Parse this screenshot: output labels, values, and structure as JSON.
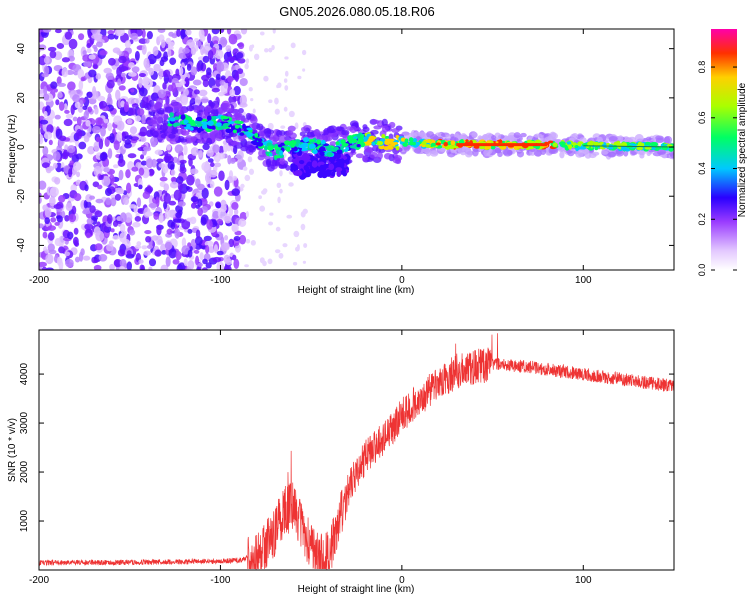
{
  "page_title": "GN05.2026.080.05.18.R06",
  "chart_data": [
    {
      "type": "heatmap",
      "title": "GN05.2026.080.05.18.R06",
      "xlabel": "Height of straight line (km)",
      "ylabel": "Frequency (Hz)",
      "xlim": [
        -200,
        150
      ],
      "ylim": [
        -50,
        48
      ],
      "xticks": [
        -200,
        -100,
        0,
        100
      ],
      "yticks": [
        -40,
        -20,
        0,
        20,
        40
      ],
      "colorbar": {
        "label": "Normalized spectral amplitude",
        "range": [
          0,
          0.95
        ],
        "ticks": [
          0,
          0.2,
          0.4,
          0.6,
          0.8
        ],
        "tick_labels": [
          "0.0",
          "0.2",
          "0.4",
          "0.6",
          "0.8"
        ],
        "colors": [
          "#ffffff",
          "#e3c8ff",
          "#9a3cff",
          "#2a00ff",
          "#00c8ff",
          "#00ff64",
          "#aaff00",
          "#ffd000",
          "#ff3000",
          "#ff00aa"
        ]
      },
      "ridge": [
        {
          "x": -130,
          "y": 11
        },
        {
          "x": -120,
          "y": 10
        },
        {
          "x": -110,
          "y": 9
        },
        {
          "x": -100,
          "y": 10
        },
        {
          "x": -90,
          "y": 8
        },
        {
          "x": -80,
          "y": 3
        },
        {
          "x": -70,
          "y": -2
        },
        {
          "x": -60,
          "y": 0
        },
        {
          "x": -50,
          "y": 1
        },
        {
          "x": -40,
          "y": -1
        },
        {
          "x": -30,
          "y": 1
        },
        {
          "x": -20,
          "y": 3
        },
        {
          "x": -10,
          "y": 2
        },
        {
          "x": 0,
          "y": 2
        },
        {
          "x": 25,
          "y": 1
        },
        {
          "x": 50,
          "y": 1
        },
        {
          "x": 75,
          "y": 1
        },
        {
          "x": 100,
          "y": 0.5
        },
        {
          "x": 150,
          "y": 0
        }
      ]
    },
    {
      "type": "line",
      "xlabel": "Height of straight line (km)",
      "ylabel": "SNR (10 * v/v)",
      "xlim": [
        -200,
        150
      ],
      "ylim": [
        0,
        4900
      ],
      "xticks": [
        -200,
        -100,
        0,
        100
      ],
      "yticks": [
        1000,
        2000,
        3000,
        4000
      ],
      "series": [
        {
          "name": "SNR",
          "color": "#ee3333",
          "x": [
            -200,
            -180,
            -160,
            -140,
            -120,
            -100,
            -90,
            -80,
            -75,
            -70,
            -65,
            -60,
            -55,
            -50,
            -45,
            -40,
            -35,
            -30,
            -25,
            -20,
            -15,
            -10,
            -5,
            0,
            10,
            20,
            30,
            40,
            50,
            60,
            70,
            80,
            90,
            100,
            110,
            120,
            130,
            140,
            150
          ],
          "values": [
            150,
            150,
            155,
            160,
            170,
            180,
            200,
            280,
            500,
            800,
            1200,
            1300,
            900,
            400,
            250,
            350,
            900,
            1600,
            2000,
            2300,
            2500,
            2700,
            2900,
            3150,
            3500,
            3800,
            4050,
            4150,
            4200,
            4180,
            4150,
            4100,
            4050,
            4000,
            3950,
            3900,
            3850,
            3800,
            3750
          ]
        }
      ]
    }
  ]
}
